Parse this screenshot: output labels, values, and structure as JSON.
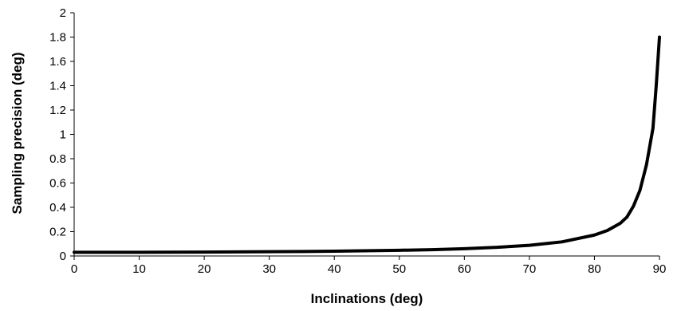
{
  "chart_data": {
    "type": "line",
    "title": "",
    "xlabel": "Inclinations (deg)",
    "ylabel": "Sampling precision (deg)",
    "xlim": [
      0,
      90
    ],
    "ylim": [
      0,
      2
    ],
    "x_ticks": [
      "0",
      "10",
      "20",
      "30",
      "40",
      "50",
      "60",
      "70",
      "80",
      "90"
    ],
    "y_ticks": [
      "0",
      "0.2",
      "0.4",
      "0.6",
      "0.8",
      "1",
      "1.2",
      "1.4",
      "1.6",
      "1.8",
      "2"
    ],
    "grid": false,
    "legend": "none",
    "line_color": "#000000",
    "series": [
      {
        "x": [
          0,
          10,
          20,
          30,
          40,
          50,
          55,
          60,
          65,
          70,
          75,
          80,
          82,
          84,
          85,
          86,
          87,
          88,
          89,
          89.5,
          90
        ],
        "y": [
          0.03,
          0.03,
          0.032,
          0.035,
          0.039,
          0.047,
          0.052,
          0.06,
          0.071,
          0.088,
          0.116,
          0.172,
          0.21,
          0.27,
          0.32,
          0.41,
          0.54,
          0.75,
          1.05,
          1.4,
          1.8
        ]
      }
    ]
  }
}
